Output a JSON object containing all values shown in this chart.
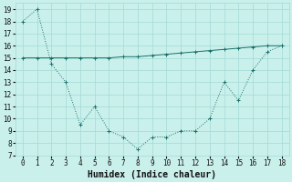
{
  "xlabel": "Humidex (Indice chaleur)",
  "background_color": "#caf0ec",
  "grid_color": "#a8ddd8",
  "line_color": "#1a7068",
  "x_main": [
    0,
    1,
    2,
    3,
    4,
    5,
    6,
    7,
    8,
    9,
    10,
    11,
    12,
    13,
    14,
    15,
    16,
    17,
    18
  ],
  "y_main": [
    18,
    19,
    14.5,
    13,
    9.5,
    11,
    9,
    8.5,
    7.5,
    8.5,
    8.5,
    9,
    9,
    10,
    13,
    11.5,
    14,
    15.5,
    16
  ],
  "x_flat": [
    0,
    1,
    2,
    3,
    4,
    5,
    6,
    7,
    8,
    9,
    10,
    11,
    12,
    13,
    14,
    15,
    16,
    17,
    18
  ],
  "y_flat": [
    15,
    15,
    15,
    15,
    15,
    15,
    15,
    15.1,
    15.1,
    15.2,
    15.3,
    15.4,
    15.5,
    15.6,
    15.7,
    15.8,
    15.9,
    16,
    16
  ],
  "ylim": [
    7,
    19.5
  ],
  "xlim": [
    -0.5,
    18.5
  ],
  "yticks": [
    7,
    8,
    9,
    10,
    11,
    12,
    13,
    14,
    15,
    16,
    17,
    18,
    19
  ],
  "xticks": [
    0,
    1,
    2,
    3,
    4,
    5,
    6,
    7,
    8,
    9,
    10,
    11,
    12,
    13,
    14,
    15,
    16,
    17,
    18
  ],
  "xlabel_fontsize": 7,
  "tick_fontsize": 5.5
}
